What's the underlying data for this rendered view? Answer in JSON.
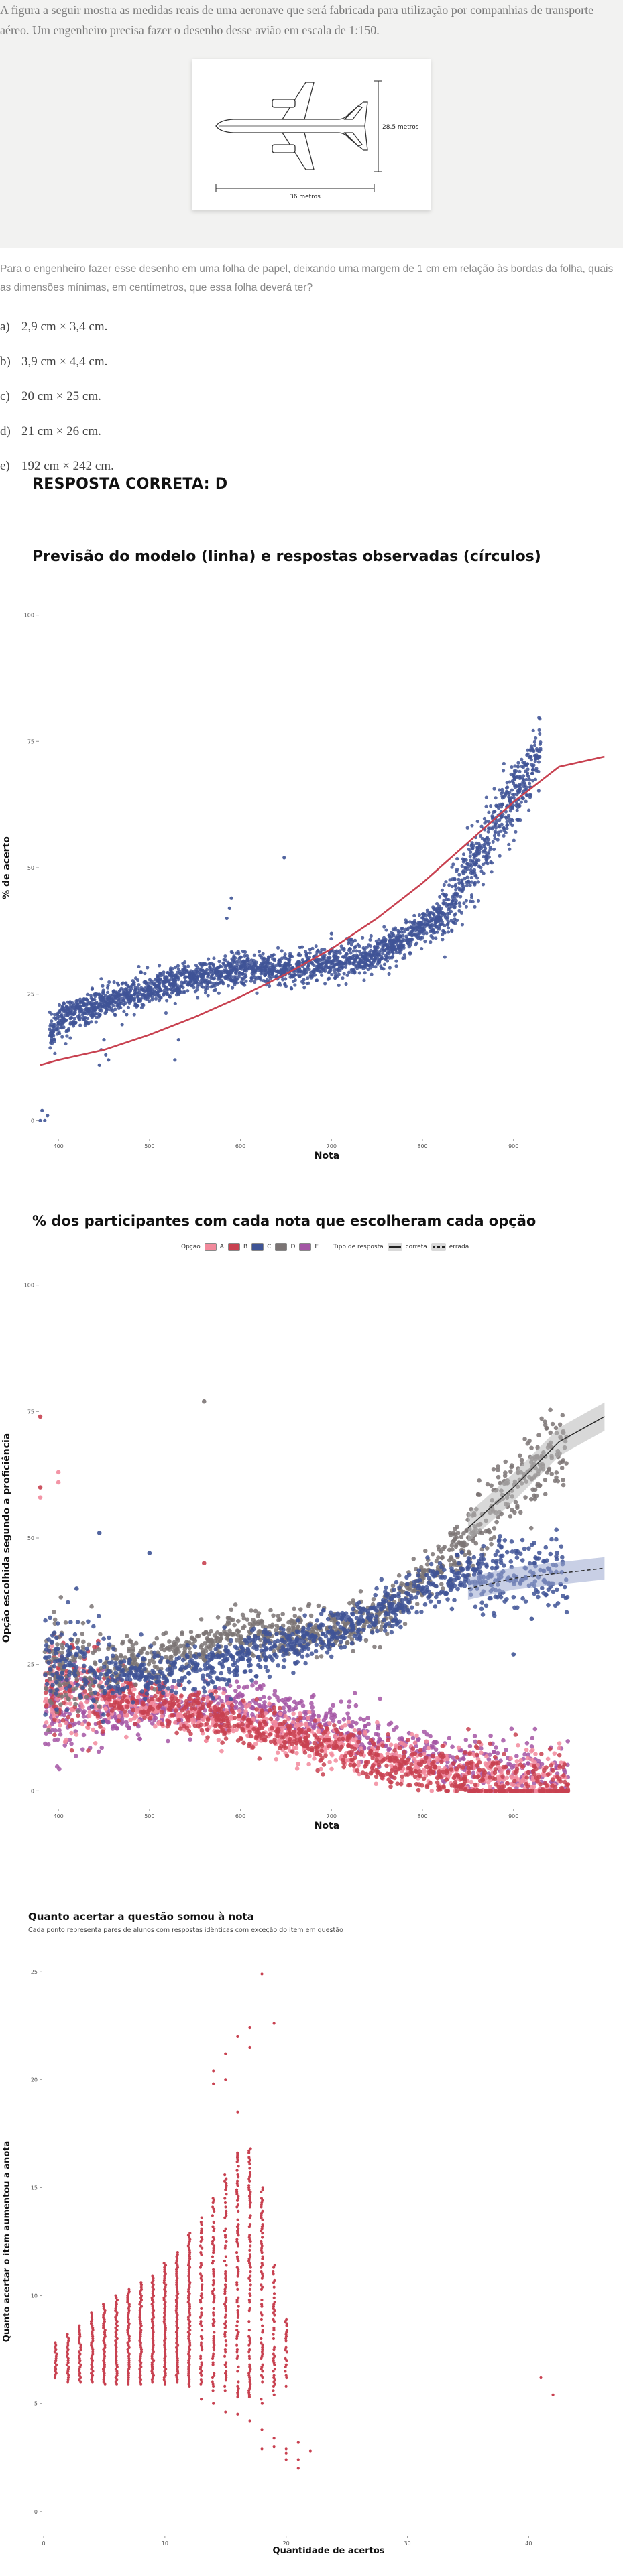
{
  "question": {
    "intro": "A figura a seguir mostra as medidas reais de uma aeronave que será fabricada para utilização por companhias de transporte aéreo. Um engenheiro precisa fazer o desenho desse avião em escala de 1:150.",
    "figure": {
      "height_label": "28,5 metros",
      "length_label": "36 metros"
    },
    "prompt": "Para o engenheiro fazer esse desenho em uma folha de papel, deixando uma margem de 1 cm em relação às bordas da folha, quais as dimensões mínimas, em centímetros, que essa folha deverá ter?",
    "options": [
      {
        "letter": "a)",
        "text": "2,9 cm × 3,4 cm."
      },
      {
        "letter": "b)",
        "text": "3,9 cm × 4,4 cm."
      },
      {
        "letter": "c)",
        "text": "20 cm × 25 cm."
      },
      {
        "letter": "d)",
        "text": "21 cm × 26 cm."
      },
      {
        "letter": "e)",
        "text": "192 cm × 242 cm."
      }
    ],
    "answer": "RESPOSTA CORRETA: D"
  },
  "colors": {
    "blue": "#3f5496",
    "red": "#c84150",
    "gray": "#7b7474",
    "pink": "#f28a9c",
    "purple": "#a456a5",
    "band": "#b8b8b8"
  },
  "chart_data": [
    {
      "type": "scatter",
      "title": "Previsão do modelo (linha) e respostas observadas (círculos)",
      "xlabel": "Nota",
      "ylabel": "% de acerto",
      "xlim": [
        380,
        1010
      ],
      "ylim": [
        -3,
        103
      ],
      "x_ticks": [
        400,
        500,
        600,
        700,
        800,
        900
      ],
      "y_ticks": [
        0,
        25,
        50,
        75,
        100
      ],
      "observed_series": {
        "color": "blue",
        "trend": [
          [
            390,
            17
          ],
          [
            400,
            20
          ],
          [
            430,
            22
          ],
          [
            460,
            24
          ],
          [
            500,
            26
          ],
          [
            550,
            28
          ],
          [
            600,
            30
          ],
          [
            650,
            30
          ],
          [
            700,
            31
          ],
          [
            750,
            33
          ],
          [
            800,
            38
          ],
          [
            830,
            42
          ],
          [
            860,
            52
          ],
          [
            880,
            58
          ],
          [
            900,
            64
          ],
          [
            920,
            70
          ],
          [
            930,
            73
          ]
        ],
        "outliers": [
          [
            380,
            0
          ],
          [
            382,
            2
          ],
          [
            385,
            0
          ],
          [
            388,
            1
          ],
          [
            445,
            11
          ],
          [
            447,
            14
          ],
          [
            450,
            16
          ],
          [
            452,
            13
          ],
          [
            455,
            12
          ],
          [
            470,
            19
          ],
          [
            472,
            23
          ],
          [
            475,
            21
          ],
          [
            528,
            12
          ],
          [
            532,
            16
          ],
          [
            585,
            40
          ],
          [
            588,
            42
          ],
          [
            590,
            44
          ],
          [
            648,
            52
          ],
          [
            700,
            37
          ],
          [
            720,
            34
          ],
          [
            905,
            70
          ]
        ]
      },
      "model_line": {
        "name": "previsão",
        "color": "red",
        "points": [
          [
            380,
            11
          ],
          [
            400,
            12
          ],
          [
            450,
            14
          ],
          [
            500,
            17
          ],
          [
            550,
            20.5
          ],
          [
            600,
            24.5
          ],
          [
            650,
            29
          ],
          [
            700,
            34
          ],
          [
            750,
            40
          ],
          [
            800,
            47
          ],
          [
            850,
            55
          ],
          [
            900,
            63
          ],
          [
            950,
            70
          ],
          [
            1000,
            72
          ]
        ]
      }
    },
    {
      "type": "scatter",
      "title": "% dos participantes com cada nota que escolheram cada opção",
      "xlabel": "Nota",
      "ylabel": "Opção escolhida segundo a proficiência",
      "xlim": [
        380,
        1010
      ],
      "ylim": [
        -3,
        103
      ],
      "x_ticks": [
        400,
        500,
        600,
        700,
        800,
        900
      ],
      "y_ticks": [
        0,
        25,
        50,
        75,
        100
      ],
      "legend": {
        "title_option": "Opção",
        "options": [
          "A",
          "B",
          "C",
          "D",
          "E"
        ],
        "title_type": "Tipo de resposta",
        "types": [
          "correta",
          "errada"
        ]
      },
      "series": [
        {
          "name": "A",
          "color": "pink",
          "trend": [
            [
              380,
              20
            ],
            [
              450,
              18
            ],
            [
              500,
              17
            ],
            [
              550,
              15
            ],
            [
              600,
              13
            ],
            [
              650,
              11
            ],
            [
              700,
              9
            ],
            [
              750,
              7
            ],
            [
              800,
              5
            ],
            [
              850,
              3
            ],
            [
              900,
              2
            ],
            [
              950,
              1
            ]
          ]
        },
        {
          "name": "B",
          "color": "red",
          "trend": [
            [
              380,
              21
            ],
            [
              450,
              19
            ],
            [
              500,
              18
            ],
            [
              550,
              16
            ],
            [
              600,
              13
            ],
            [
              650,
              11
            ],
            [
              700,
              9
            ],
            [
              750,
              6
            ],
            [
              800,
              4
            ],
            [
              850,
              2
            ],
            [
              900,
              1
            ],
            [
              950,
              0.5
            ]
          ]
        },
        {
          "name": "C",
          "color": "blue",
          "trend": [
            [
              380,
              26
            ],
            [
              450,
              23
            ],
            [
              500,
              23
            ],
            [
              550,
              24
            ],
            [
              600,
              26
            ],
            [
              650,
              28
            ],
            [
              700,
              31
            ],
            [
              750,
              35
            ],
            [
              800,
              40
            ],
            [
              850,
              43
            ],
            [
              900,
              44
            ],
            [
              950,
              43
            ]
          ]
        },
        {
          "name": "D",
          "color": "gray",
          "trend": [
            [
              380,
              24
            ],
            [
              450,
              25
            ],
            [
              500,
              26
            ],
            [
              550,
              28
            ],
            [
              600,
              31
            ],
            [
              650,
              31
            ],
            [
              700,
              32
            ],
            [
              750,
              34
            ],
            [
              800,
              42
            ],
            [
              850,
              50
            ],
            [
              900,
              60
            ],
            [
              950,
              67
            ]
          ]
        },
        {
          "name": "E",
          "color": "purple",
          "trend": [
            [
              380,
              15
            ],
            [
              450,
              15
            ],
            [
              500,
              16
            ],
            [
              550,
              16
            ],
            [
              600,
              17
            ],
            [
              650,
              15
            ],
            [
              700,
              13
            ],
            [
              750,
              10
            ],
            [
              800,
              8
            ],
            [
              850,
              5
            ],
            [
              900,
              3
            ],
            [
              950,
              2
            ]
          ]
        }
      ],
      "fit_correct": [
        [
          380,
          22
        ],
        [
          500,
          26
        ],
        [
          600,
          30
        ],
        [
          700,
          33
        ],
        [
          750,
          36
        ],
        [
          800,
          43
        ],
        [
          850,
          52
        ],
        [
          900,
          60
        ],
        [
          950,
          69
        ],
        [
          1000,
          74
        ]
      ],
      "fit_wrong": [
        [
          850,
          40
        ],
        [
          900,
          42
        ],
        [
          950,
          43
        ],
        [
          1000,
          44
        ]
      ]
    },
    {
      "type": "scatter",
      "title": "Quanto acertar a questão somou à nota",
      "subtitle": "Cada ponto representa pares de alunos com respostas idênticas com exceção do item em questão",
      "xlabel": "Quantidade de acertos",
      "ylabel": "Quanto acertar o item aumentou a anota",
      "xlim": [
        0,
        47
      ],
      "ylim": [
        -1,
        26
      ],
      "x_ticks": [
        0,
        10,
        20,
        30,
        40
      ],
      "y_ticks": [
        0,
        5,
        10,
        15,
        20,
        25
      ],
      "color": "red",
      "columns": [
        {
          "x": 1,
          "min": 6.2,
          "max": 7.8
        },
        {
          "x": 2,
          "min": 6.0,
          "max": 8.2
        },
        {
          "x": 3,
          "min": 6.0,
          "max": 8.6
        },
        {
          "x": 4,
          "min": 6.0,
          "max": 9.2
        },
        {
          "x": 5,
          "min": 5.9,
          "max": 9.6
        },
        {
          "x": 6,
          "min": 5.9,
          "max": 10.0
        },
        {
          "x": 7,
          "min": 5.9,
          "max": 10.3
        },
        {
          "x": 8,
          "min": 5.9,
          "max": 10.6
        },
        {
          "x": 9,
          "min": 6.0,
          "max": 10.9
        },
        {
          "x": 10,
          "min": 5.9,
          "max": 11.5
        },
        {
          "x": 11,
          "min": 6.0,
          "max": 12.0
        },
        {
          "x": 12,
          "min": 5.8,
          "max": 12.9
        },
        {
          "x": 13,
          "min": 5.8,
          "max": 13.6
        },
        {
          "x": 14,
          "min": 5.6,
          "max": 14.6
        },
        {
          "x": 15,
          "min": 5.4,
          "max": 15.6
        },
        {
          "x": 16,
          "min": 5.3,
          "max": 16.6
        },
        {
          "x": 17,
          "min": 5.3,
          "max": 16.8
        },
        {
          "x": 18,
          "min": 5.0,
          "max": 15.0
        },
        {
          "x": 19,
          "min": 5.2,
          "max": 11.5
        },
        {
          "x": 20,
          "min": 5.8,
          "max": 9.0
        }
      ],
      "extra_points": [
        [
          14,
          19.8
        ],
        [
          14,
          20.4
        ],
        [
          15,
          21.2
        ],
        [
          15,
          20.0
        ],
        [
          16,
          22.0
        ],
        [
          17,
          22.4
        ],
        [
          17,
          21.5
        ],
        [
          18,
          24.9
        ],
        [
          19,
          22.6
        ],
        [
          16,
          18.5
        ],
        [
          18,
          2.9
        ],
        [
          18,
          3.8
        ],
        [
          19,
          3.4
        ],
        [
          19,
          3.0
        ],
        [
          20,
          2.9
        ],
        [
          20,
          2.7
        ],
        [
          20,
          2.4
        ],
        [
          21,
          2.0
        ],
        [
          21,
          2.4
        ],
        [
          21,
          3.2
        ],
        [
          22,
          2.8
        ],
        [
          15,
          4.6
        ],
        [
          16,
          4.5
        ],
        [
          13,
          5.2
        ],
        [
          17,
          4.2
        ],
        [
          14,
          5.0
        ],
        [
          41,
          6.2
        ],
        [
          42,
          5.4
        ]
      ]
    }
  ]
}
